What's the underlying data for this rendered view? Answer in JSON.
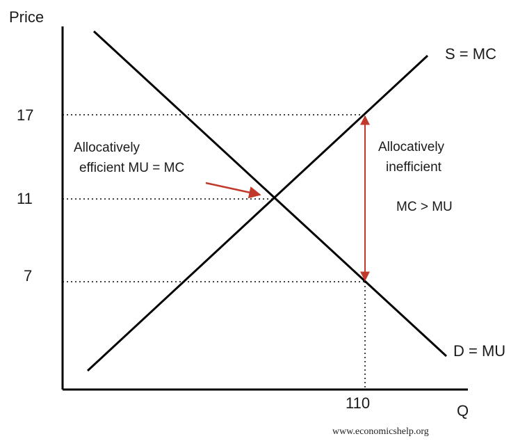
{
  "chart_data": {
    "type": "line",
    "ylabel": "Price",
    "xlabel": "Q",
    "y_ticks": [
      "17",
      "11",
      "7"
    ],
    "x_ticks": [
      "110"
    ],
    "series": [
      {
        "name": "S = MC"
      },
      {
        "name": "D = MU"
      }
    ],
    "annotations": {
      "efficient_line1": "Allocatively",
      "efficient_line2": "efficient MU = MC",
      "inefficient_line1": "Allocatively",
      "inefficient_line2": "inefficient",
      "inequality": "MC > MU"
    },
    "colors": {
      "lines": "#000000",
      "arrow": "#c0392b",
      "guides": "#000000"
    }
  },
  "watermark": "www.economicshelp.org"
}
